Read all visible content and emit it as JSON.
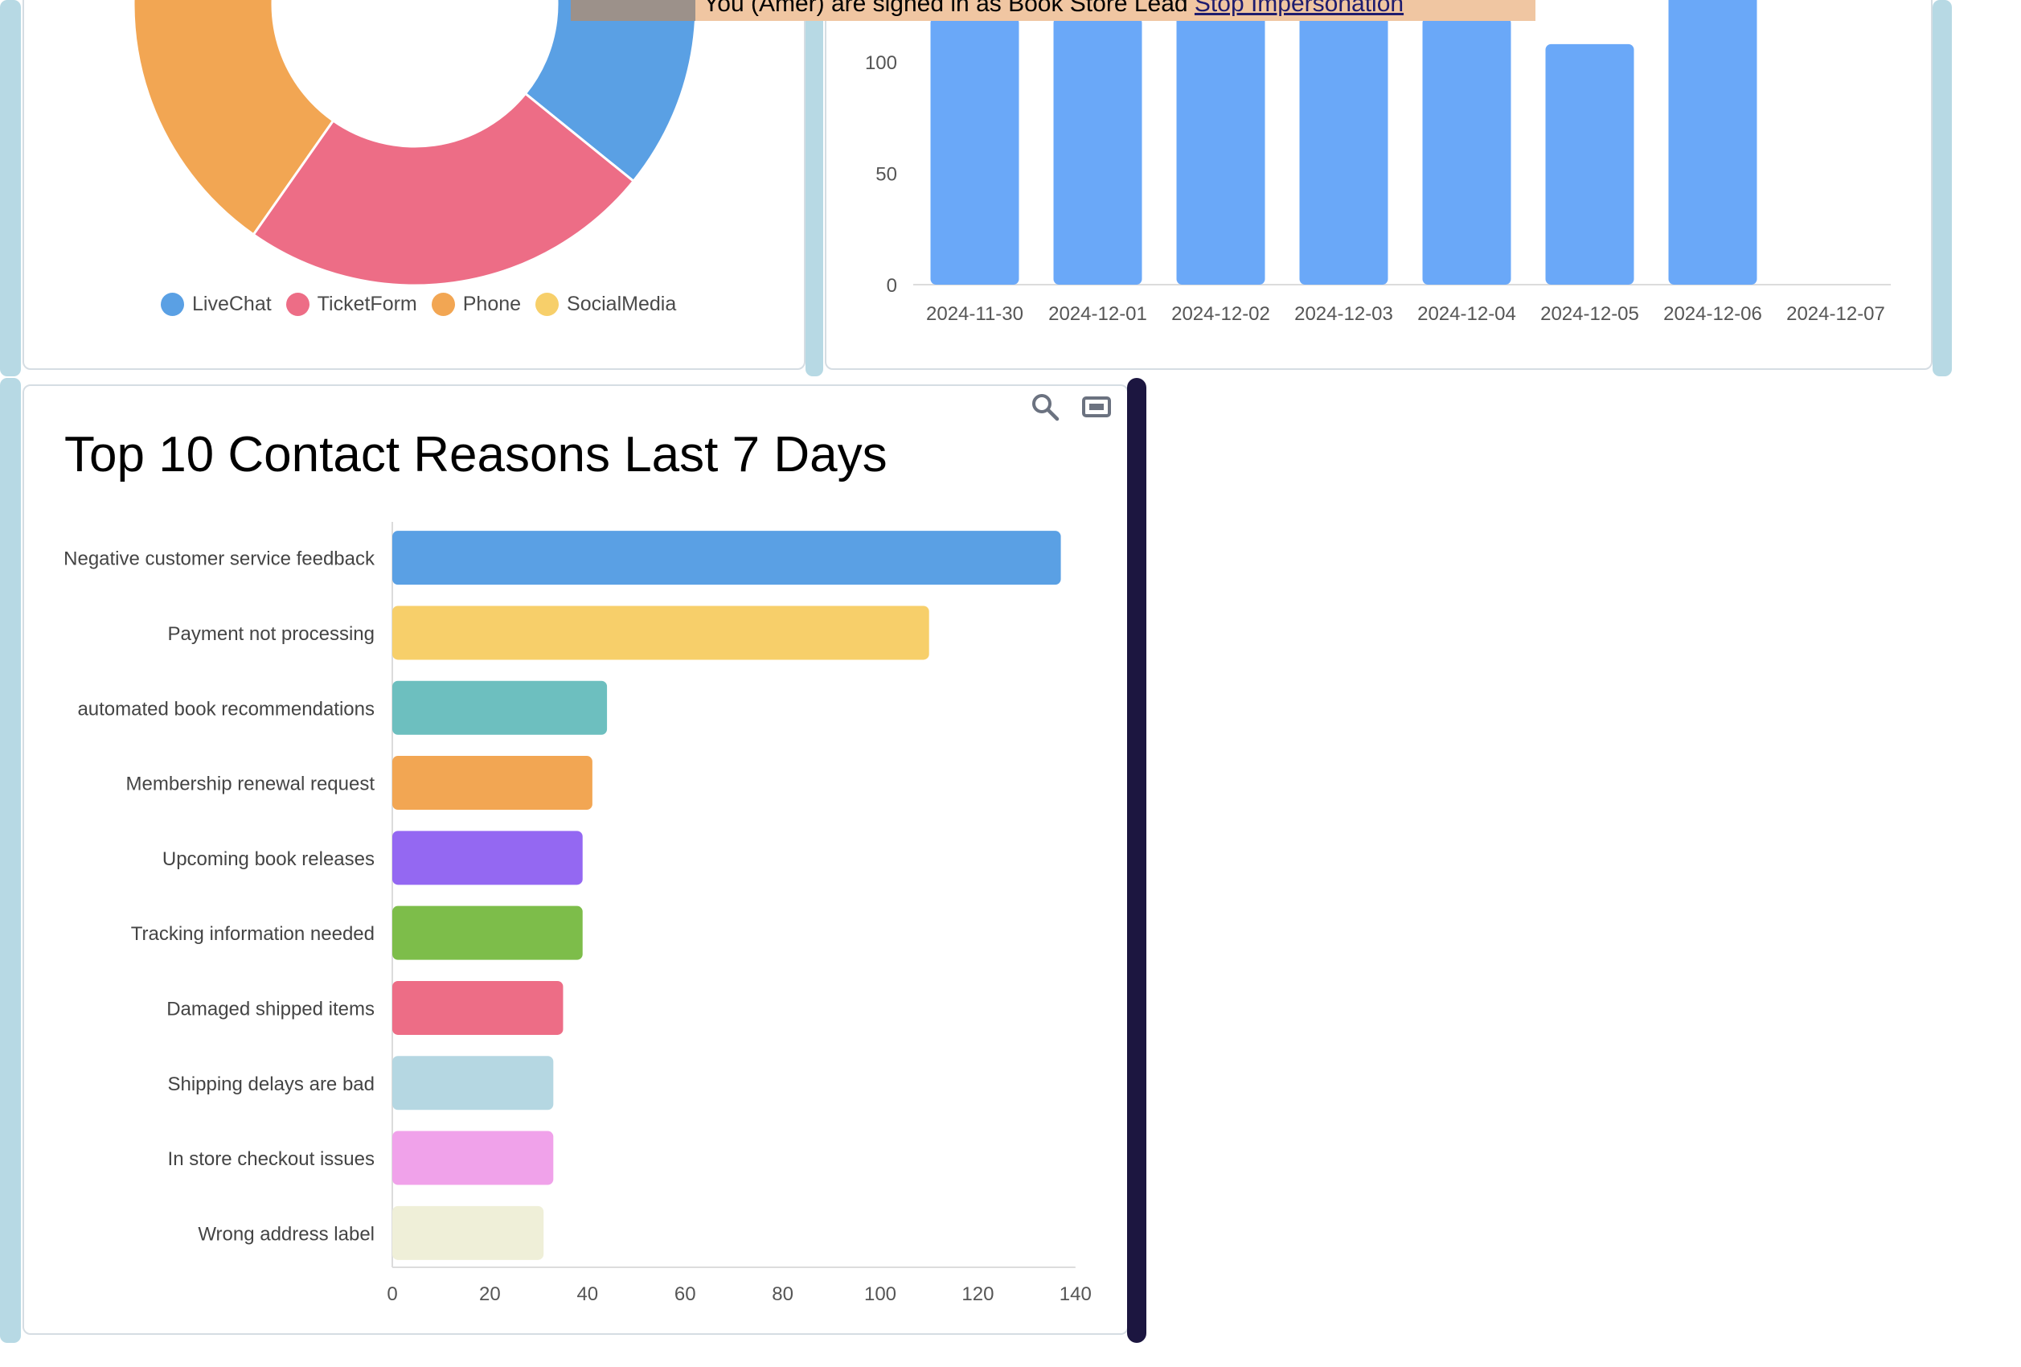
{
  "banner": {
    "text": "You (Amer) are signed in as Book Store Lead",
    "link_label": "Stop Impersonation",
    "bg_color": "#f0c6a2"
  },
  "icons": {
    "zoom": "magnifier-icon",
    "save": "ticket-icon"
  },
  "chart_data": [
    {
      "type": "pie",
      "variant": "donut",
      "categories": [
        "LiveChat",
        "TicketForm",
        "Phone",
        "SocialMedia"
      ],
      "colors": [
        "#5aa0e4",
        "#ed6d86",
        "#f2a653",
        "#f7cf6a"
      ],
      "legend": {
        "position": "bottom"
      }
    },
    {
      "type": "bar",
      "categories": [
        "2024-11-30",
        "2024-12-01",
        "2024-12-02",
        "2024-12-03",
        "2024-12-04",
        "2024-12-05",
        "2024-12-06",
        "2024-12-07"
      ],
      "series": [
        {
          "values": [
            120,
            120,
            135,
            135,
            120,
            108,
            140,
            0
          ]
        }
      ],
      "yticks": [
        0,
        50,
        100
      ],
      "ylim": [
        0,
        140
      ],
      "color": "#6aa8f8",
      "grid": false
    },
    {
      "type": "bar",
      "orientation": "horizontal",
      "title": "Top 10 Contact Reasons Last 7 Days",
      "categories": [
        "Negative customer service feedback",
        "Payment not processing",
        "automated book recommendations",
        "Membership renewal request",
        "Upcoming book releases",
        "Tracking information needed",
        "Damaged shipped items",
        "Shipping delays are bad",
        "In store checkout issues",
        "Wrong address label"
      ],
      "values": [
        137,
        110,
        44,
        41,
        39,
        39,
        35,
        33,
        33,
        31
      ],
      "colors": [
        "#5aa0e4",
        "#f7cf6a",
        "#6dbfbf",
        "#f2a653",
        "#9468f2",
        "#7dbd4a",
        "#ed6d86",
        "#b5d7e2",
        "#f0a2ea",
        "#efefd8"
      ],
      "xticks": [
        0,
        20,
        40,
        60,
        80,
        100,
        120,
        140
      ],
      "xlim": [
        0,
        140
      ],
      "grid": false
    }
  ]
}
